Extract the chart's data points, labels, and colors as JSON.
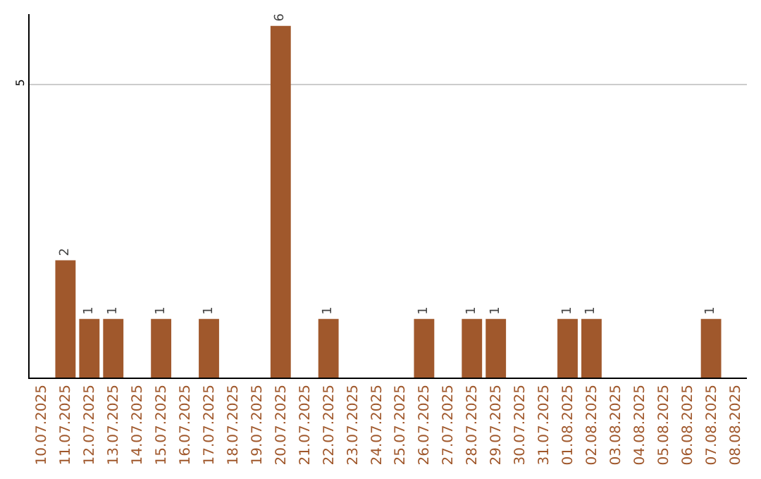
{
  "chart_data": {
    "type": "bar",
    "categories": [
      "10.07.2025",
      "11.07.2025",
      "12.07.2025",
      "13.07.2025",
      "14.07.2025",
      "15.07.2025",
      "16.07.2025",
      "17.07.2025",
      "18.07.2025",
      "19.07.2025",
      "20.07.2025",
      "21.07.2025",
      "22.07.2025",
      "23.07.2025",
      "24.07.2025",
      "25.07.2025",
      "26.07.2025",
      "27.07.2025",
      "28.07.2025",
      "29.07.2025",
      "30.07.2025",
      "31.07.2025",
      "01.08.2025",
      "02.08.2025",
      "03.08.2025",
      "04.08.2025",
      "05.08.2025",
      "06.08.2025",
      "07.08.2025",
      "08.08.2025"
    ],
    "values": [
      null,
      2,
      1,
      1,
      null,
      1,
      null,
      1,
      null,
      null,
      6,
      null,
      1,
      null,
      null,
      null,
      1,
      null,
      1,
      1,
      null,
      null,
      1,
      1,
      null,
      null,
      null,
      null,
      1,
      null
    ],
    "color": "#a0582c",
    "ylim": [
      0,
      6.2
    ],
    "yticks": [
      5
    ],
    "grid": "y",
    "data_labels": true
  }
}
